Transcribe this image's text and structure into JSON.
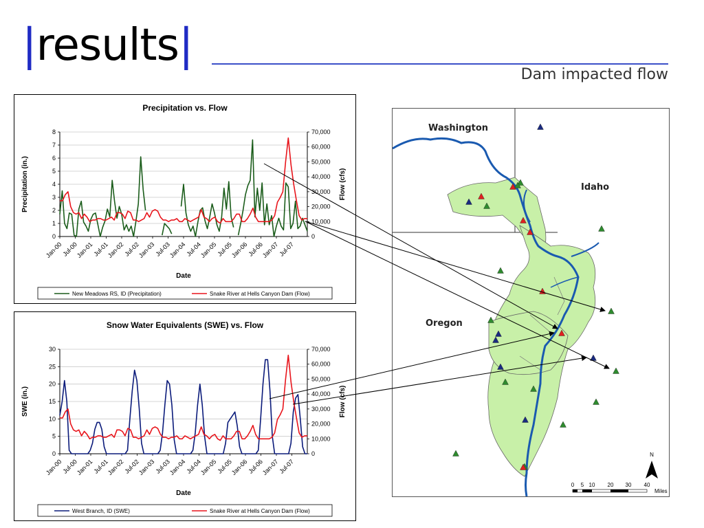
{
  "slide": {
    "title": "results",
    "bar_left": "|",
    "bar_right": "|",
    "subtitle": "Dam impacted flow",
    "accent_color": "#1f2bc4"
  },
  "chart_data": [
    {
      "type": "line",
      "title": "Precipitation vs. Flow",
      "xlabel": "Date",
      "ylabel_left": "Precipitation (in.)",
      "ylabel_right": "Flow (cfs)",
      "ylim_left": [
        0,
        8
      ],
      "ylim_right": [
        0,
        70000
      ],
      "yticks_left": [
        "0",
        "1",
        "2",
        "3",
        "4",
        "5",
        "6",
        "7",
        "8"
      ],
      "yticks_right": [
        "0",
        "10,000",
        "20,000",
        "30,000",
        "40,000",
        "50,000",
        "60,000",
        "70,000"
      ],
      "x_ticks": [
        "Jan-00",
        "Jul-00",
        "Jan-01",
        "Jul-01",
        "Jan-02",
        "Jul-02",
        "Jan-03",
        "Jul-03",
        "Jan-04",
        "Jul-04",
        "Jan-05",
        "Jul-05",
        "Jan-06",
        "Jul-06",
        "Jan-07",
        "Jul-07"
      ],
      "grid": true,
      "legend_position": "bottom",
      "series": [
        {
          "name": "New Meadows RS, ID (Precipitation)",
          "axis": "left",
          "color": "#1a5c1a",
          "values": [
            1.7,
            3.5,
            1.0,
            0.6,
            1.8,
            1.7,
            0.1,
            0.0,
            2.1,
            2.7,
            1.1,
            0.8,
            0.4,
            1.3,
            1.7,
            1.8,
            0.9,
            0.0,
            0.7,
            1.2,
            2.1,
            1.5,
            4.3,
            2.7,
            1.4,
            2.3,
            1.7,
            0.5,
            0.9,
            0.4,
            0.8,
            0.0,
            1.2,
            2.5,
            6.1,
            3.6,
            2.0,
            null,
            null,
            null,
            null,
            null,
            null,
            0.1,
            1.0,
            0.8,
            0.6,
            0.2,
            null,
            null,
            null,
            2.3,
            4.0,
            1.8,
            0.9,
            0.4,
            0.8,
            0.0,
            1.1,
            2.0,
            2.2,
            1.2,
            0.6,
            1.5,
            2.5,
            1.8,
            0.9,
            0.4,
            1.5,
            3.7,
            2.1,
            4.2,
            1.5,
            0.7,
            null,
            0.1,
            1.0,
            2.0,
            3.2,
            3.9,
            4.3,
            7.4,
            1.5,
            3.7,
            2.0,
            4.1,
            0.9,
            2.5,
            0.9,
            1.6,
            0.0,
            0.8,
            1.4,
            0.8,
            0.5,
            4.1,
            3.8,
            0.6,
            1.0,
            2.7,
            0.6,
            0.8,
            1.4,
            0.9,
            0.4
          ]
        },
        {
          "name": "Snake River at Hells Canyon Dam (Flow)",
          "axis": "right",
          "color": "#e8141b",
          "values": [
            24000,
            24000,
            28000,
            30000,
            20000,
            16000,
            15000,
            16000,
            12000,
            15000,
            13000,
            10000,
            11000,
            11000,
            12000,
            12000,
            11000,
            11000,
            12000,
            13000,
            11000,
            16000,
            16000,
            15000,
            12000,
            17000,
            16000,
            11000,
            11000,
            10000,
            11000,
            12000,
            16000,
            13000,
            17000,
            18000,
            17000,
            13000,
            11000,
            11000,
            10000,
            11000,
            11000,
            12000,
            10000,
            10000,
            12000,
            11000,
            10000,
            11000,
            12000,
            13000,
            18000,
            13000,
            12000,
            10000,
            12000,
            13000,
            10000,
            9000,
            12000,
            10000,
            10000,
            10000,
            12000,
            15000,
            15000,
            10000,
            10000,
            12000,
            15000,
            19000,
            13000,
            10000,
            10000,
            10000,
            10000,
            10000,
            11000,
            14000,
            23000,
            26000,
            30000,
            50000,
            66000,
            48000,
            35000,
            24000,
            14000,
            11000,
            12000,
            12000
          ]
        }
      ]
    },
    {
      "type": "line",
      "title": "Snow Water Equivalents (SWE) vs. Flow",
      "xlabel": "Date",
      "ylabel_left": "SWE (in.)",
      "ylabel_right": "Flow (cfs)",
      "ylim_left": [
        0,
        30
      ],
      "ylim_right": [
        0,
        70000
      ],
      "yticks_left": [
        "0",
        "5",
        "10",
        "15",
        "20",
        "25",
        "30"
      ],
      "yticks_right": [
        "0",
        "10,000",
        "20,000",
        "30,000",
        "40,000",
        "50,000",
        "60,000",
        "70,000"
      ],
      "x_ticks": [
        "Jan-00",
        "Jul-00",
        "Jan-01",
        "Jul-01",
        "Jan-02",
        "Jul-02",
        "Jan-03",
        "Jul-03",
        "Jan-04",
        "Jul-04",
        "Jan-05",
        "Jul-05",
        "Jan-06",
        "Jul-06",
        "Jan-07",
        "Jul-07"
      ],
      "grid": true,
      "legend_position": "bottom",
      "series": [
        {
          "name": "West Branch, ID (SWE)",
          "axis": "left",
          "color": "#0a1a7a",
          "values": [
            11,
            15,
            21,
            15,
            1,
            0,
            0,
            0,
            0,
            0,
            0,
            0,
            0,
            1,
            3,
            7,
            9,
            9,
            7,
            2,
            0,
            0,
            0,
            0,
            0,
            0,
            0,
            0,
            0,
            1,
            10,
            18,
            24,
            21,
            13,
            3,
            0,
            0,
            0,
            0,
            0,
            0,
            0,
            1,
            6,
            14,
            21,
            20,
            14,
            4,
            0,
            0,
            0,
            0,
            0,
            0,
            0,
            1,
            6,
            14,
            20,
            14,
            5,
            0,
            0,
            0,
            0,
            0,
            0,
            0,
            0,
            3,
            9,
            10,
            11,
            12,
            8,
            2,
            0,
            0,
            0,
            0,
            0,
            0,
            0,
            1,
            10,
            20,
            27,
            27,
            18,
            5,
            0,
            0,
            0,
            0,
            0,
            0,
            0,
            3,
            12,
            16,
            17,
            10,
            2,
            0,
            0
          ]
        },
        {
          "name": "Snake River at Hells Canyon Dam (Flow)",
          "axis": "right",
          "color": "#e8141b",
          "values": [
            24000,
            24000,
            28000,
            30000,
            20000,
            16000,
            15000,
            16000,
            12000,
            15000,
            13000,
            10000,
            11000,
            11000,
            12000,
            12000,
            11000,
            11000,
            12000,
            13000,
            11000,
            16000,
            16000,
            15000,
            12000,
            17000,
            16000,
            11000,
            11000,
            10000,
            11000,
            12000,
            16000,
            13000,
            17000,
            18000,
            17000,
            13000,
            11000,
            11000,
            10000,
            11000,
            11000,
            12000,
            10000,
            10000,
            12000,
            11000,
            10000,
            11000,
            12000,
            13000,
            18000,
            13000,
            12000,
            10000,
            12000,
            13000,
            10000,
            9000,
            12000,
            10000,
            10000,
            10000,
            12000,
            15000,
            15000,
            10000,
            10000,
            12000,
            15000,
            19000,
            13000,
            10000,
            10000,
            10000,
            10000,
            10000,
            11000,
            14000,
            23000,
            26000,
            30000,
            50000,
            66000,
            48000,
            35000,
            24000,
            14000,
            11000,
            12000,
            12000
          ]
        }
      ]
    }
  ],
  "map": {
    "labels": [
      "Washington",
      "Idaho",
      "Oregon"
    ],
    "north_label": "N",
    "scale_ticks": [
      "0",
      "5",
      "10",
      "20",
      "30",
      "40"
    ],
    "scale_unit": "Miles",
    "watershed_color": "#c8f0a8",
    "river_color": "#1a5ab0",
    "marker_colors": {
      "precip": "#2e8b2e",
      "swe": "#1a2a80",
      "flow": "#e02020"
    }
  }
}
